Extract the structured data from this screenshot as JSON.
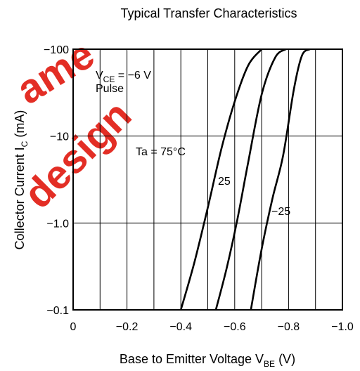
{
  "watermark": {
    "lines": [
      "ame",
      "design"
    ],
    "color": "#e2231a"
  },
  "chart_data": {
    "type": "line",
    "title": "Typical Transfer Characteristics",
    "xlabel": {
      "main": "Base to Emitter Voltage  V",
      "sub": "BE",
      "unit": "  (V)"
    },
    "ylabel": {
      "main": "Collector Current  I",
      "sub": "C",
      "unit": "  (mA)"
    },
    "x_axis": {
      "range": [
        0,
        -1.0
      ],
      "ticks": [
        0,
        -0.2,
        -0.4,
        -0.6,
        -0.8,
        -1.0
      ],
      "tick_labels": [
        "0",
        "−0.2",
        "−0.4",
        "−0.6",
        "−0.8",
        "−1.0"
      ],
      "minor_grid_step": -0.1
    },
    "y_axis": {
      "scale": "log",
      "range": [
        -0.1,
        -100
      ],
      "ticks": [
        -0.1,
        -1.0,
        -10,
        -100
      ],
      "tick_labels": [
        "−0.1",
        "−1.0",
        "−10",
        "−100"
      ]
    },
    "grid": true,
    "annotations": {
      "condition_vce": {
        "main": "V",
        "sub": "CE",
        "rest": " = −6 V"
      },
      "condition_pulse": "Pulse"
    },
    "series": [
      {
        "name": "Ta = 75°C",
        "x": [
          -0.4,
          -0.45,
          -0.5,
          -0.55,
          -0.6,
          -0.65,
          -0.7
        ],
        "y": [
          -0.1,
          -0.35,
          -1.5,
          -7,
          -25,
          -65,
          -100
        ]
      },
      {
        "name": "25",
        "x": [
          -0.53,
          -0.57,
          -0.61,
          -0.65,
          -0.7,
          -0.75,
          -0.79
        ],
        "y": [
          -0.1,
          -0.3,
          -1.1,
          -5,
          -30,
          -80,
          -100
        ]
      },
      {
        "name": "−25",
        "x": [
          -0.66,
          -0.7,
          -0.74,
          -0.78,
          -0.82,
          -0.85,
          -0.88
        ],
        "y": [
          -0.1,
          -0.5,
          -1.9,
          -6,
          -35,
          -85,
          -100
        ]
      }
    ]
  }
}
